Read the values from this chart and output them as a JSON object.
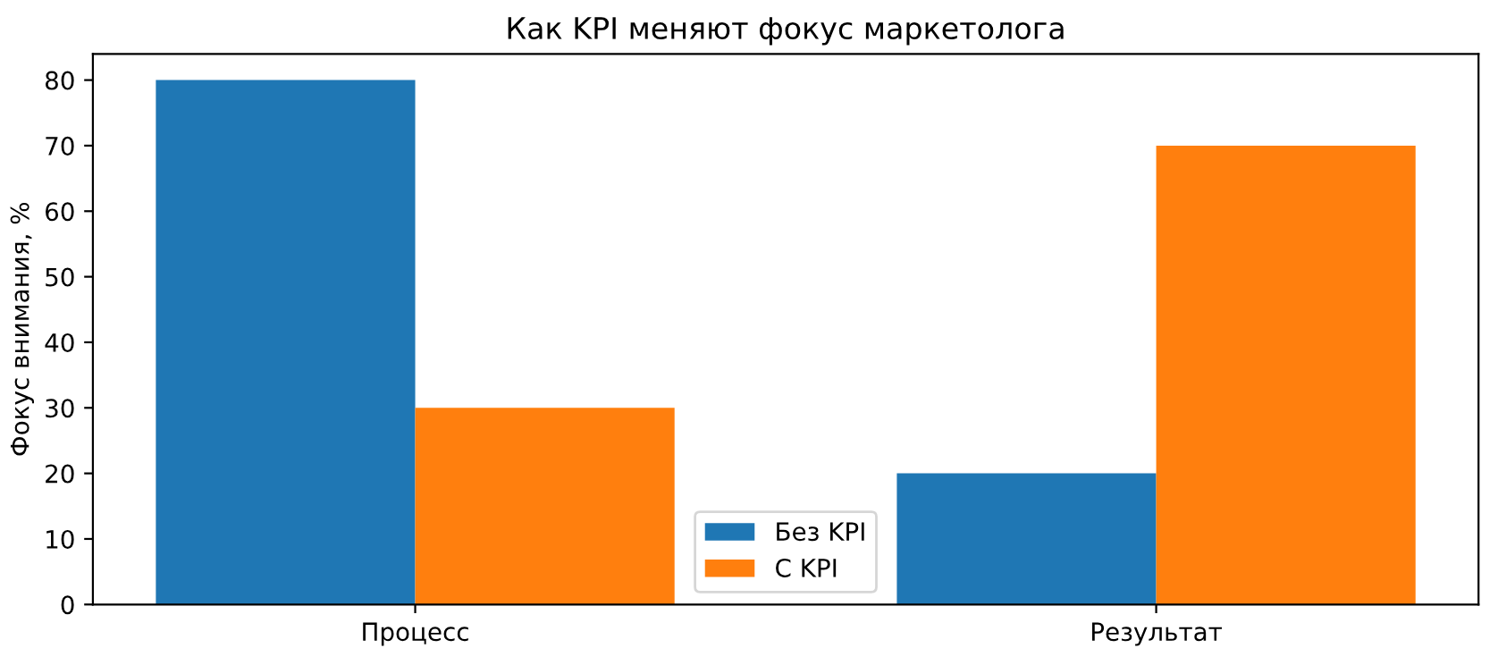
{
  "chart_data": {
    "type": "bar",
    "title": "Как KPI меняют фокус маркетолога",
    "ylabel": "Фокус внимания, %",
    "categories": [
      "Процесс",
      "Результат"
    ],
    "series": [
      {
        "name": "Без KPI",
        "color": "#1f77b4",
        "values": [
          80,
          20
        ]
      },
      {
        "name": "С KPI",
        "color": "#ff7f0e",
        "values": [
          30,
          70
        ]
      }
    ],
    "ylim": [
      0,
      84
    ],
    "yticks": [
      0,
      10,
      20,
      30,
      40,
      50,
      60,
      70,
      80
    ],
    "legend": "bottom",
    "grid": false
  }
}
